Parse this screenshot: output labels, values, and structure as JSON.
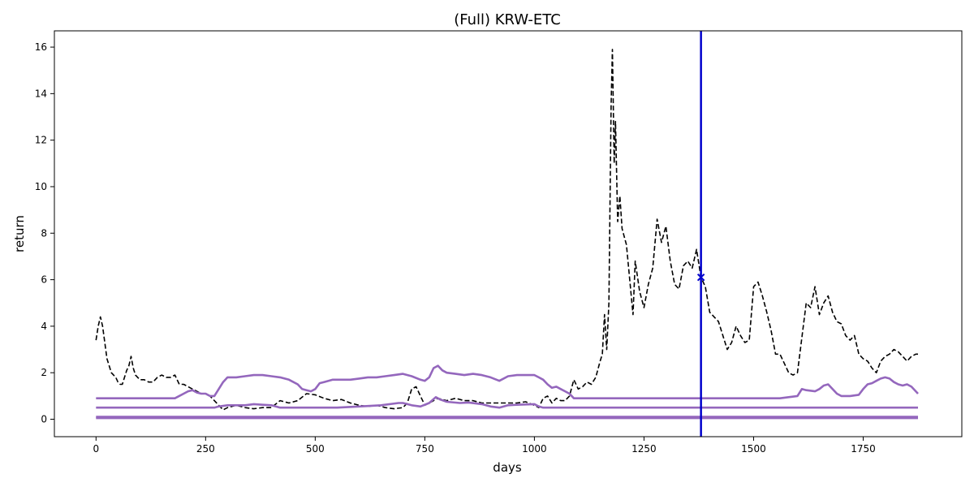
{
  "chart_data": {
    "type": "line",
    "title": "(Full) KRW-ETC",
    "xlabel": "days",
    "ylabel": "return",
    "xlim": [
      -95,
      1975
    ],
    "ylim": [
      -0.75,
      16.7
    ],
    "xticks": [
      0,
      250,
      500,
      750,
      1000,
      1250,
      1500,
      1750
    ],
    "yticks": [
      0,
      2,
      4,
      6,
      8,
      10,
      12,
      14,
      16
    ],
    "grid": false,
    "legend": "none",
    "vline": {
      "x": 1380,
      "color": "#0000cc"
    },
    "marker": {
      "x": 1380,
      "y": 6.1,
      "symbol": "x",
      "color": "#0000cc"
    },
    "series": [
      {
        "style": "dashed",
        "color": "#000000",
        "points": [
          [
            0,
            3.4
          ],
          [
            5,
            4.0
          ],
          [
            10,
            4.4
          ],
          [
            15,
            4.0
          ],
          [
            20,
            3.3
          ],
          [
            25,
            2.6
          ],
          [
            30,
            2.3
          ],
          [
            35,
            2.0
          ],
          [
            40,
            1.9
          ],
          [
            45,
            1.8
          ],
          [
            50,
            1.6
          ],
          [
            55,
            1.5
          ],
          [
            60,
            1.5
          ],
          [
            65,
            1.8
          ],
          [
            70,
            2.1
          ],
          [
            75,
            2.3
          ],
          [
            80,
            2.7
          ],
          [
            85,
            2.2
          ],
          [
            90,
            1.9
          ],
          [
            100,
            1.7
          ],
          [
            110,
            1.7
          ],
          [
            120,
            1.6
          ],
          [
            130,
            1.6
          ],
          [
            140,
            1.8
          ],
          [
            150,
            1.9
          ],
          [
            160,
            1.8
          ],
          [
            170,
            1.8
          ],
          [
            180,
            1.9
          ],
          [
            190,
            1.5
          ],
          [
            200,
            1.5
          ],
          [
            210,
            1.4
          ],
          [
            220,
            1.3
          ],
          [
            230,
            1.2
          ],
          [
            240,
            1.1
          ],
          [
            250,
            1.1
          ],
          [
            260,
            1.0
          ],
          [
            270,
            0.8
          ],
          [
            280,
            0.6
          ],
          [
            290,
            0.4
          ],
          [
            300,
            0.5
          ],
          [
            320,
            0.6
          ],
          [
            340,
            0.5
          ],
          [
            360,
            0.45
          ],
          [
            380,
            0.5
          ],
          [
            400,
            0.5
          ],
          [
            420,
            0.8
          ],
          [
            440,
            0.7
          ],
          [
            460,
            0.8
          ],
          [
            480,
            1.1
          ],
          [
            500,
            1.05
          ],
          [
            520,
            0.9
          ],
          [
            540,
            0.8
          ],
          [
            560,
            0.85
          ],
          [
            580,
            0.7
          ],
          [
            600,
            0.6
          ],
          [
            620,
            0.55
          ],
          [
            640,
            0.6
          ],
          [
            660,
            0.5
          ],
          [
            680,
            0.45
          ],
          [
            700,
            0.5
          ],
          [
            710,
            0.7
          ],
          [
            720,
            1.3
          ],
          [
            730,
            1.4
          ],
          [
            740,
            1.0
          ],
          [
            750,
            0.6
          ],
          [
            760,
            0.7
          ],
          [
            780,
            0.9
          ],
          [
            800,
            0.8
          ],
          [
            820,
            0.9
          ],
          [
            840,
            0.8
          ],
          [
            860,
            0.8
          ],
          [
            880,
            0.7
          ],
          [
            900,
            0.7
          ],
          [
            920,
            0.7
          ],
          [
            940,
            0.7
          ],
          [
            960,
            0.7
          ],
          [
            980,
            0.75
          ],
          [
            1000,
            0.6
          ],
          [
            1010,
            0.5
          ],
          [
            1020,
            0.9
          ],
          [
            1030,
            1.0
          ],
          [
            1040,
            0.7
          ],
          [
            1050,
            0.9
          ],
          [
            1060,
            0.8
          ],
          [
            1070,
            0.8
          ],
          [
            1080,
            1.0
          ],
          [
            1090,
            1.7
          ],
          [
            1100,
            1.3
          ],
          [
            1110,
            1.4
          ],
          [
            1120,
            1.6
          ],
          [
            1130,
            1.5
          ],
          [
            1140,
            1.8
          ],
          [
            1150,
            2.5
          ],
          [
            1155,
            2.8
          ],
          [
            1160,
            4.5
          ],
          [
            1165,
            3.0
          ],
          [
            1170,
            5.0
          ],
          [
            1175,
            13.5
          ],
          [
            1178,
            15.9
          ],
          [
            1182,
            11.0
          ],
          [
            1185,
            12.8
          ],
          [
            1190,
            8.5
          ],
          [
            1195,
            9.6
          ],
          [
            1200,
            8.2
          ],
          [
            1210,
            7.5
          ],
          [
            1215,
            6.5
          ],
          [
            1220,
            5.5
          ],
          [
            1225,
            4.5
          ],
          [
            1230,
            6.8
          ],
          [
            1240,
            5.5
          ],
          [
            1250,
            4.8
          ],
          [
            1260,
            5.8
          ],
          [
            1270,
            6.5
          ],
          [
            1280,
            8.6
          ],
          [
            1290,
            7.6
          ],
          [
            1300,
            8.3
          ],
          [
            1310,
            6.8
          ],
          [
            1320,
            5.8
          ],
          [
            1330,
            5.6
          ],
          [
            1340,
            6.6
          ],
          [
            1350,
            6.8
          ],
          [
            1360,
            6.5
          ],
          [
            1370,
            7.3
          ],
          [
            1380,
            6.1
          ],
          [
            1390,
            5.7
          ],
          [
            1400,
            4.6
          ],
          [
            1410,
            4.4
          ],
          [
            1420,
            4.2
          ],
          [
            1430,
            3.6
          ],
          [
            1440,
            3.0
          ],
          [
            1450,
            3.3
          ],
          [
            1460,
            4.0
          ],
          [
            1470,
            3.6
          ],
          [
            1480,
            3.3
          ],
          [
            1490,
            3.4
          ],
          [
            1500,
            5.7
          ],
          [
            1510,
            5.9
          ],
          [
            1520,
            5.3
          ],
          [
            1530,
            4.6
          ],
          [
            1540,
            3.8
          ],
          [
            1550,
            2.8
          ],
          [
            1560,
            2.8
          ],
          [
            1570,
            2.4
          ],
          [
            1580,
            2.0
          ],
          [
            1590,
            1.9
          ],
          [
            1600,
            2.0
          ],
          [
            1610,
            3.5
          ],
          [
            1620,
            5.0
          ],
          [
            1630,
            4.8
          ],
          [
            1640,
            5.7
          ],
          [
            1650,
            4.5
          ],
          [
            1660,
            5.0
          ],
          [
            1670,
            5.3
          ],
          [
            1680,
            4.6
          ],
          [
            1690,
            4.2
          ],
          [
            1700,
            4.1
          ],
          [
            1710,
            3.6
          ],
          [
            1720,
            3.4
          ],
          [
            1730,
            3.6
          ],
          [
            1740,
            2.8
          ],
          [
            1750,
            2.6
          ],
          [
            1760,
            2.5
          ],
          [
            1770,
            2.2
          ],
          [
            1780,
            2.0
          ],
          [
            1790,
            2.5
          ],
          [
            1800,
            2.7
          ],
          [
            1810,
            2.8
          ],
          [
            1820,
            3.0
          ],
          [
            1830,
            2.9
          ],
          [
            1840,
            2.7
          ],
          [
            1850,
            2.5
          ],
          [
            1860,
            2.7
          ],
          [
            1870,
            2.8
          ],
          [
            1875,
            2.8
          ]
        ]
      },
      {
        "style": "solid",
        "color": "#9467bd",
        "points": [
          [
            0,
            0.9
          ],
          [
            60,
            0.9
          ],
          [
            180,
            0.9
          ],
          [
            200,
            1.1
          ],
          [
            210,
            1.2
          ],
          [
            220,
            1.25
          ],
          [
            230,
            1.15
          ],
          [
            240,
            1.1
          ],
          [
            250,
            1.1
          ],
          [
            260,
            1.0
          ],
          [
            270,
            1.0
          ],
          [
            280,
            1.3
          ],
          [
            290,
            1.6
          ],
          [
            300,
            1.8
          ],
          [
            320,
            1.8
          ],
          [
            340,
            1.85
          ],
          [
            360,
            1.9
          ],
          [
            380,
            1.9
          ],
          [
            400,
            1.85
          ],
          [
            420,
            1.8
          ],
          [
            440,
            1.7
          ],
          [
            460,
            1.5
          ],
          [
            470,
            1.3
          ],
          [
            480,
            1.25
          ],
          [
            490,
            1.2
          ],
          [
            500,
            1.3
          ],
          [
            510,
            1.55
          ],
          [
            520,
            1.6
          ],
          [
            540,
            1.7
          ],
          [
            560,
            1.7
          ],
          [
            580,
            1.7
          ],
          [
            600,
            1.75
          ],
          [
            620,
            1.8
          ],
          [
            640,
            1.8
          ],
          [
            660,
            1.85
          ],
          [
            680,
            1.9
          ],
          [
            700,
            1.95
          ],
          [
            720,
            1.85
          ],
          [
            740,
            1.7
          ],
          [
            750,
            1.65
          ],
          [
            760,
            1.8
          ],
          [
            770,
            2.2
          ],
          [
            780,
            2.3
          ],
          [
            790,
            2.1
          ],
          [
            800,
            2.0
          ],
          [
            820,
            1.95
          ],
          [
            840,
            1.9
          ],
          [
            860,
            1.95
          ],
          [
            880,
            1.9
          ],
          [
            900,
            1.8
          ],
          [
            920,
            1.65
          ],
          [
            940,
            1.85
          ],
          [
            960,
            1.9
          ],
          [
            980,
            1.9
          ],
          [
            1000,
            1.9
          ],
          [
            1010,
            1.8
          ],
          [
            1020,
            1.7
          ],
          [
            1030,
            1.5
          ],
          [
            1040,
            1.35
          ],
          [
            1050,
            1.4
          ],
          [
            1060,
            1.3
          ],
          [
            1070,
            1.2
          ],
          [
            1080,
            1.1
          ],
          [
            1090,
            0.9
          ],
          [
            1560,
            0.9
          ],
          [
            1580,
            0.95
          ],
          [
            1600,
            1.0
          ],
          [
            1610,
            1.3
          ],
          [
            1620,
            1.25
          ],
          [
            1640,
            1.2
          ],
          [
            1650,
            1.3
          ],
          [
            1660,
            1.45
          ],
          [
            1670,
            1.5
          ],
          [
            1680,
            1.3
          ],
          [
            1690,
            1.1
          ],
          [
            1700,
            1.0
          ],
          [
            1720,
            1.0
          ],
          [
            1740,
            1.05
          ],
          [
            1750,
            1.3
          ],
          [
            1760,
            1.5
          ],
          [
            1770,
            1.55
          ],
          [
            1780,
            1.65
          ],
          [
            1790,
            1.75
          ],
          [
            1800,
            1.8
          ],
          [
            1810,
            1.75
          ],
          [
            1820,
            1.6
          ],
          [
            1830,
            1.5
          ],
          [
            1840,
            1.45
          ],
          [
            1850,
            1.5
          ],
          [
            1860,
            1.4
          ],
          [
            1870,
            1.2
          ],
          [
            1875,
            1.1
          ]
        ]
      },
      {
        "style": "solid",
        "color": "#9467bd",
        "points": [
          [
            0,
            0.5
          ],
          [
            270,
            0.5
          ],
          [
            280,
            0.55
          ],
          [
            300,
            0.6
          ],
          [
            320,
            0.6
          ],
          [
            340,
            0.6
          ],
          [
            360,
            0.65
          ],
          [
            380,
            0.62
          ],
          [
            400,
            0.6
          ],
          [
            420,
            0.5
          ],
          [
            500,
            0.5
          ],
          [
            550,
            0.5
          ],
          [
            600,
            0.55
          ],
          [
            650,
            0.6
          ],
          [
            690,
            0.7
          ],
          [
            700,
            0.7
          ],
          [
            720,
            0.6
          ],
          [
            740,
            0.55
          ],
          [
            760,
            0.7
          ],
          [
            775,
            0.95
          ],
          [
            785,
            0.85
          ],
          [
            800,
            0.75
          ],
          [
            830,
            0.7
          ],
          [
            850,
            0.72
          ],
          [
            880,
            0.65
          ],
          [
            900,
            0.55
          ],
          [
            920,
            0.5
          ],
          [
            940,
            0.6
          ],
          [
            960,
            0.62
          ],
          [
            1000,
            0.65
          ],
          [
            1010,
            0.55
          ],
          [
            1020,
            0.5
          ],
          [
            1875,
            0.5
          ]
        ]
      },
      {
        "style": "solid",
        "color": "#9467bd",
        "points": [
          [
            0,
            0.1
          ],
          [
            1875,
            0.1
          ]
        ]
      },
      {
        "style": "solid",
        "color": "#9467bd",
        "points": [
          [
            0,
            0.05
          ],
          [
            1875,
            0.05
          ]
        ]
      }
    ]
  }
}
